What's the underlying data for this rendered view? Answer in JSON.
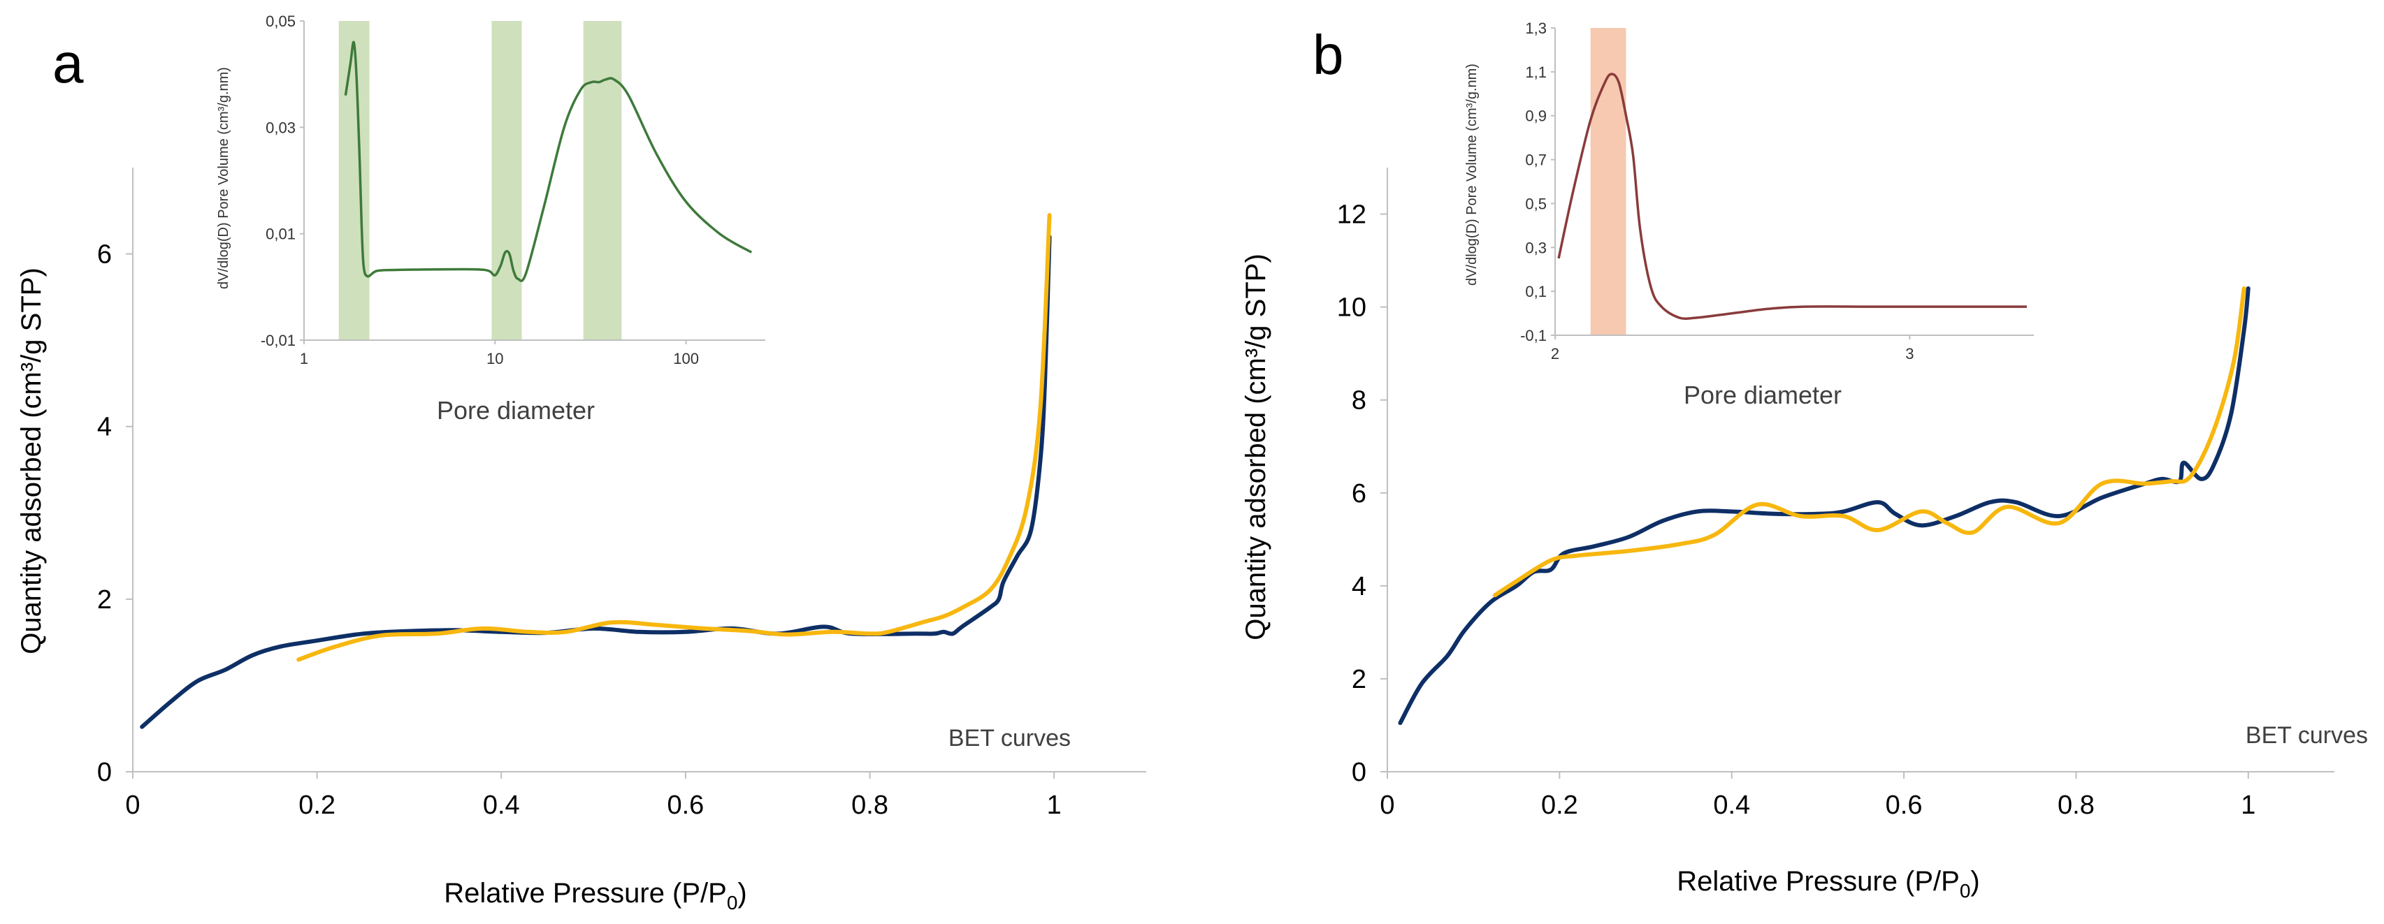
{
  "colors": {
    "adsorption": "#0e2f66",
    "desorption": "#f7b70f",
    "inset_a_line": "#3e7a3a",
    "inset_a_band": "#cfe0bd",
    "inset_b_line": "#8a3b3b",
    "inset_b_band": "#f6c9b0",
    "axis": "#bfbfbf"
  },
  "chart_data": [
    {
      "id": "a",
      "type": "line",
      "panel_label": "a",
      "xlabel_main": "Relative Pressure (P/P",
      "xlabel_sub": "0",
      "xlabel_close": ")",
      "ylabel": "Quantity adsorbed (cm³/g STP)",
      "annotation": "BET curves",
      "xlim": [
        0,
        1.1
      ],
      "ylim": [
        0,
        7
      ],
      "xticks": [
        0,
        0.2,
        0.4,
        0.6,
        0.8,
        1
      ],
      "xtick_labels": [
        "0",
        "0.2",
        "0.4",
        "0.6",
        "0.8",
        "1"
      ],
      "yticks": [
        0,
        2,
        4,
        6
      ],
      "ytick_labels": [
        "0",
        "2",
        "4",
        "6"
      ],
      "grid": false,
      "series": [
        {
          "color_key": "adsorption",
          "points": [
            [
              0.01,
              0.52
            ],
            [
              0.04,
              0.8
            ],
            [
              0.07,
              1.05
            ],
            [
              0.1,
              1.18
            ],
            [
              0.13,
              1.35
            ],
            [
              0.16,
              1.45
            ],
            [
              0.2,
              1.52
            ],
            [
              0.25,
              1.6
            ],
            [
              0.3,
              1.63
            ],
            [
              0.35,
              1.64
            ],
            [
              0.4,
              1.62
            ],
            [
              0.45,
              1.61
            ],
            [
              0.5,
              1.66
            ],
            [
              0.55,
              1.62
            ],
            [
              0.6,
              1.62
            ],
            [
              0.65,
              1.66
            ],
            [
              0.7,
              1.6
            ],
            [
              0.75,
              1.68
            ],
            [
              0.78,
              1.6
            ],
            [
              0.85,
              1.6
            ],
            [
              0.87,
              1.6
            ],
            [
              0.88,
              1.62
            ],
            [
              0.89,
              1.6
            ],
            [
              0.9,
              1.68
            ],
            [
              0.93,
              1.9
            ],
            [
              0.94,
              2.0
            ],
            [
              0.945,
              2.2
            ],
            [
              0.96,
              2.5
            ],
            [
              0.975,
              2.8
            ],
            [
              0.985,
              3.6
            ],
            [
              0.99,
              4.5
            ],
            [
              0.995,
              6.2
            ]
          ]
        },
        {
          "color_key": "desorption",
          "points": [
            [
              0.18,
              1.3
            ],
            [
              0.22,
              1.45
            ],
            [
              0.27,
              1.58
            ],
            [
              0.33,
              1.6
            ],
            [
              0.38,
              1.66
            ],
            [
              0.43,
              1.62
            ],
            [
              0.47,
              1.62
            ],
            [
              0.52,
              1.73
            ],
            [
              0.57,
              1.7
            ],
            [
              0.62,
              1.66
            ],
            [
              0.67,
              1.63
            ],
            [
              0.71,
              1.59
            ],
            [
              0.76,
              1.62
            ],
            [
              0.8,
              1.6
            ],
            [
              0.82,
              1.62
            ],
            [
              0.86,
              1.74
            ],
            [
              0.88,
              1.8
            ],
            [
              0.9,
              1.9
            ],
            [
              0.93,
              2.1
            ],
            [
              0.95,
              2.45
            ],
            [
              0.97,
              3.05
            ],
            [
              0.985,
              4.2
            ],
            [
              0.995,
              6.45
            ]
          ]
        }
      ],
      "inset": {
        "xlabel": "Pore diameter",
        "ylabel": "dV/dlog(D) Pore Volume (cm³/g.nm)",
        "xscale": "log",
        "xlim": [
          1,
          260
        ],
        "ylim": [
          -0.01,
          0.05
        ],
        "xticks": [
          1,
          10,
          100
        ],
        "xtick_labels": [
          "1",
          "10",
          "100"
        ],
        "yticks": [
          -0.01,
          0.01,
          0.03,
          0.05
        ],
        "ytick_labels": [
          "-0,01",
          "0,01",
          "0,03",
          "0,05"
        ],
        "bands": [
          [
            1.52,
            2.2
          ],
          [
            9.6,
            13.8
          ],
          [
            29,
            46
          ]
        ],
        "series": {
          "color_key": "inset_a_line",
          "points": [
            [
              1.65,
              0.036
            ],
            [
              1.75,
              0.042
            ],
            [
              1.82,
              0.046
            ],
            [
              1.88,
              0.04
            ],
            [
              1.95,
              0.025
            ],
            [
              2.0,
              0.012
            ],
            [
              2.05,
              0.004
            ],
            [
              2.15,
              0.002
            ],
            [
              2.4,
              0.003
            ],
            [
              3,
              0.0032
            ],
            [
              5,
              0.0033
            ],
            [
              8,
              0.0033
            ],
            [
              9.3,
              0.003
            ],
            [
              10,
              0.0022
            ],
            [
              10.7,
              0.004
            ],
            [
              11.3,
              0.0065
            ],
            [
              11.9,
              0.0062
            ],
            [
              12.5,
              0.003
            ],
            [
              13.2,
              0.0015
            ],
            [
              14.5,
              0.0025
            ],
            [
              18,
              0.015
            ],
            [
              23,
              0.03
            ],
            [
              28,
              0.037
            ],
            [
              32,
              0.0385
            ],
            [
              35,
              0.0385
            ],
            [
              38,
              0.039
            ],
            [
              42,
              0.039
            ],
            [
              50,
              0.036
            ],
            [
              70,
              0.025
            ],
            [
              100,
              0.016
            ],
            [
              150,
              0.01
            ],
            [
              220,
              0.0065
            ]
          ]
        }
      }
    },
    {
      "id": "b",
      "type": "line",
      "panel_label": "b",
      "xlabel_main": "Relative Pressure (P/P",
      "xlabel_sub": "0",
      "xlabel_close": ")",
      "ylabel": "Quantity adsorbed (cm³/g STP)",
      "annotation": "BET curves",
      "xlim": [
        0,
        1.1
      ],
      "ylim": [
        0,
        13
      ],
      "xticks": [
        0,
        0.2,
        0.4,
        0.6,
        0.8,
        1
      ],
      "xtick_labels": [
        "0",
        "0.2",
        "0.4",
        "0.6",
        "0.8",
        "1"
      ],
      "yticks": [
        0,
        2,
        4,
        6,
        8,
        10,
        12
      ],
      "ytick_labels": [
        "0",
        "2",
        "4",
        "6",
        "8",
        "10",
        "12"
      ],
      "grid": false,
      "series": [
        {
          "color_key": "adsorption",
          "points": [
            [
              0.015,
              1.05
            ],
            [
              0.04,
              1.9
            ],
            [
              0.07,
              2.5
            ],
            [
              0.09,
              3.05
            ],
            [
              0.12,
              3.65
            ],
            [
              0.15,
              4.0
            ],
            [
              0.17,
              4.3
            ],
            [
              0.19,
              4.35
            ],
            [
              0.205,
              4.7
            ],
            [
              0.24,
              4.85
            ],
            [
              0.28,
              5.05
            ],
            [
              0.32,
              5.4
            ],
            [
              0.36,
              5.6
            ],
            [
              0.4,
              5.6
            ],
            [
              0.45,
              5.55
            ],
            [
              0.5,
              5.55
            ],
            [
              0.53,
              5.6
            ],
            [
              0.57,
              5.8
            ],
            [
              0.59,
              5.55
            ],
            [
              0.62,
              5.3
            ],
            [
              0.66,
              5.5
            ],
            [
              0.7,
              5.8
            ],
            [
              0.73,
              5.8
            ],
            [
              0.78,
              5.5
            ],
            [
              0.83,
              5.9
            ],
            [
              0.88,
              6.2
            ],
            [
              0.9,
              6.3
            ],
            [
              0.92,
              6.25
            ],
            [
              0.925,
              6.65
            ],
            [
              0.945,
              6.3
            ],
            [
              0.96,
              6.6
            ],
            [
              0.98,
              7.7
            ],
            [
              0.995,
              9.5
            ],
            [
              1.0,
              10.4
            ]
          ]
        },
        {
          "color_key": "desorption",
          "points": [
            [
              0.125,
              3.8
            ],
            [
              0.15,
              4.1
            ],
            [
              0.19,
              4.55
            ],
            [
              0.22,
              4.65
            ],
            [
              0.28,
              4.75
            ],
            [
              0.34,
              4.9
            ],
            [
              0.38,
              5.1
            ],
            [
              0.43,
              5.75
            ],
            [
              0.48,
              5.5
            ],
            [
              0.53,
              5.5
            ],
            [
              0.57,
              5.2
            ],
            [
              0.62,
              5.6
            ],
            [
              0.65,
              5.35
            ],
            [
              0.68,
              5.15
            ],
            [
              0.72,
              5.7
            ],
            [
              0.78,
              5.35
            ],
            [
              0.83,
              6.2
            ],
            [
              0.88,
              6.2
            ],
            [
              0.91,
              6.25
            ],
            [
              0.93,
              6.3
            ],
            [
              0.95,
              6.9
            ],
            [
              0.97,
              7.9
            ],
            [
              0.985,
              9.0
            ],
            [
              0.995,
              10.4
            ]
          ]
        }
      ],
      "inset": {
        "xlabel": "Pore diameter",
        "ylabel": "dV/dlog(D) Pore Volume (cm³/g.nm)",
        "xscale": "linear",
        "xlim": [
          2,
          3.35
        ],
        "ylim": [
          -0.1,
          1.3
        ],
        "xticks": [
          2,
          3
        ],
        "xtick_labels": [
          "2",
          "3"
        ],
        "yticks": [
          -0.1,
          0.1,
          0.3,
          0.5,
          0.7,
          0.9,
          1.1,
          1.3
        ],
        "ytick_labels": [
          "-0,1",
          "0,1",
          "0,3",
          "0,5",
          "0,7",
          "0,9",
          "1,1",
          "1,3"
        ],
        "bands": [
          [
            2.1,
            2.2
          ]
        ],
        "series": {
          "color_key": "inset_b_line",
          "points": [
            [
              2.01,
              0.25
            ],
            [
              2.05,
              0.55
            ],
            [
              2.1,
              0.88
            ],
            [
              2.14,
              1.05
            ],
            [
              2.16,
              1.09
            ],
            [
              2.18,
              1.05
            ],
            [
              2.2,
              0.9
            ],
            [
              2.22,
              0.72
            ],
            [
              2.24,
              0.38
            ],
            [
              2.27,
              0.12
            ],
            [
              2.3,
              0.03
            ],
            [
              2.35,
              -0.02
            ],
            [
              2.4,
              -0.02
            ],
            [
              2.5,
              0.0
            ],
            [
              2.6,
              0.02
            ],
            [
              2.7,
              0.03
            ],
            [
              2.9,
              0.03
            ],
            [
              3.1,
              0.03
            ],
            [
              3.33,
              0.03
            ]
          ]
        }
      }
    }
  ]
}
